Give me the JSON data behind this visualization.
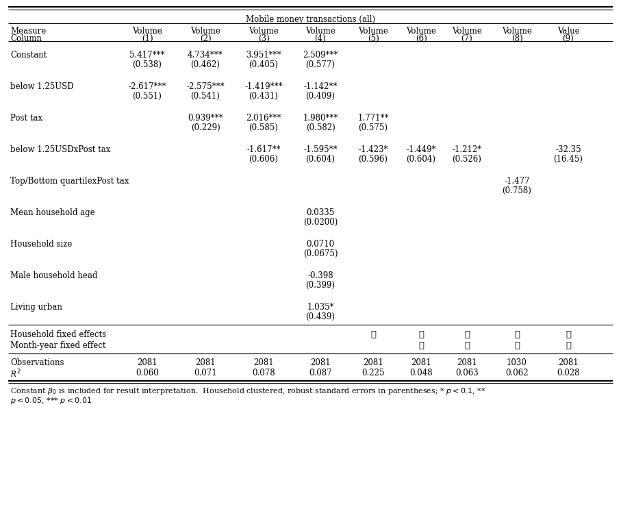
{
  "title": "Mobile money transactions (all)",
  "col_headers": [
    [
      "Measure",
      "Volume\n(1)",
      "Volume\n(2)",
      "Volume\n(3)",
      "Volume\n(4)",
      "Volume\n(5)",
      "Volume\n(6)",
      "Volume\n(7)",
      "Volume\n(8)",
      "Value\n(9)"
    ]
  ],
  "rows": [
    {
      "label": "Constant",
      "values": [
        "5.417***",
        "4.734***",
        "3.951***",
        "2.509***",
        "",
        "",
        "",
        "",
        ""
      ],
      "se": [
        "(0.538)",
        "(0.462)",
        "(0.405)",
        "(0.577)",
        "",
        "",
        "",
        "",
        ""
      ]
    },
    {
      "label": "below 1.25USD",
      "values": [
        "-2.617***",
        "-2.575***",
        "-1.419***",
        "-1.142**",
        "",
        "",
        "",
        "",
        ""
      ],
      "se": [
        "(0.551)",
        "(0.541)",
        "(0.431)",
        "(0.409)",
        "",
        "",
        "",
        "",
        ""
      ]
    },
    {
      "label": "Post tax",
      "values": [
        "",
        "0.939***",
        "2.016***",
        "1.980***",
        "1.771**",
        "",
        "",
        "",
        ""
      ],
      "se": [
        "",
        "(0.229)",
        "(0.585)",
        "(0.582)",
        "(0.575)",
        "",
        "",
        "",
        ""
      ]
    },
    {
      "label": "below 1.25USDxPost tax",
      "values": [
        "",
        "",
        "-1.617**",
        "-1.595**",
        "-1.423*",
        "-1.449*",
        "-1.212*",
        "",
        "-32.35"
      ],
      "se": [
        "",
        "",
        "(0.606)",
        "(0.604)",
        "(0.596)",
        "(0.604)",
        "(0.526)",
        "",
        "(16.45)"
      ]
    },
    {
      "label": "Top/Bottom quartilexPost tax",
      "values": [
        "",
        "",
        "",
        "",
        "",
        "",
        "",
        "-1.477",
        ""
      ],
      "se": [
        "",
        "",
        "",
        "",
        "",
        "",
        "",
        "(0.758)",
        ""
      ]
    },
    {
      "label": "Mean household age",
      "values": [
        "",
        "",
        "",
        "0.0335",
        "",
        "",
        "",
        "",
        ""
      ],
      "se": [
        "",
        "",
        "",
        "(0.0200)",
        "",
        "",
        "",
        "",
        ""
      ]
    },
    {
      "label": "Household size",
      "values": [
        "",
        "",
        "",
        "0.0710",
        "",
        "",
        "",
        "",
        ""
      ],
      "se": [
        "",
        "",
        "",
        "(0.0675)",
        "",
        "",
        "",
        "",
        ""
      ]
    },
    {
      "label": "Male household head",
      "values": [
        "",
        "",
        "",
        "-0.398",
        "",
        "",
        "",
        "",
        ""
      ],
      "se": [
        "",
        "",
        "",
        "(0.399)",
        "",
        "",
        "",
        "",
        ""
      ]
    },
    {
      "label": "Living urban",
      "values": [
        "",
        "",
        "",
        "1.035*",
        "",
        "",
        "",
        "",
        ""
      ],
      "se": [
        "",
        "",
        "",
        "(0.439)",
        "",
        "",
        "",
        "",
        ""
      ]
    }
  ],
  "fe_household": [
    "",
    "",
    "",
    "",
    "✓",
    "✓",
    "✓",
    "✓",
    "✓"
  ],
  "fe_month_year": [
    "",
    "",
    "",
    "",
    "",
    "✓",
    "✓",
    "✓",
    "✓"
  ],
  "observations": [
    "2081",
    "2081",
    "2081",
    "2081",
    "2081",
    "2081",
    "2081",
    "1030",
    "2081"
  ],
  "r_squared": [
    "0.060",
    "0.071",
    "0.078",
    "0.087",
    "0.225",
    "0.048",
    "0.063",
    "0.062",
    "0.028"
  ],
  "bg_color": "#ffffff",
  "text_color": "#000000"
}
